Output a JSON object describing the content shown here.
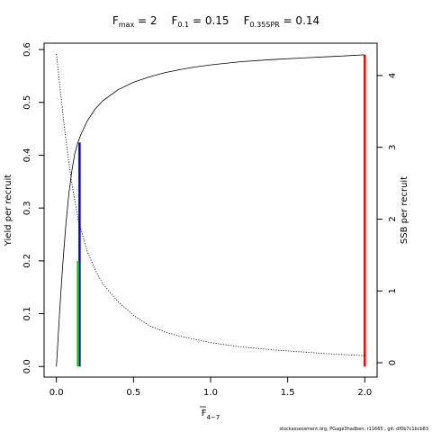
{
  "title": {
    "fmax": {
      "sym": "F",
      "sub": "max",
      "eq": " = 2"
    },
    "f01": {
      "sym": "F",
      "sub": "0.1",
      "eq": " = 0.15"
    },
    "fspr": {
      "sym": "F",
      "sub": "0.35SPR",
      "eq": " = 0.14"
    }
  },
  "footer_text": "stockassessment.org, PGage3hadben, r11665 , git: df0b7c1bcb83",
  "chart_data": {
    "type": "line",
    "xlabel": {
      "sym": "F",
      "sub": "4−7"
    },
    "ylabel_left": "Yield per recruit",
    "ylabel_right": "SSB per recruit",
    "xlim": [
      -0.08,
      2.08
    ],
    "ylim_left": [
      -0.02,
      0.612
    ],
    "ylim_right": [
      -0.2,
      4.45
    ],
    "x_ticks": [
      0,
      0.5,
      1,
      1.5,
      2
    ],
    "x_tick_labels": [
      "0.0",
      "0.5",
      "1.0",
      "1.5",
      "2.0"
    ],
    "y_left_ticks": [
      0,
      0.1,
      0.2,
      0.3,
      0.4,
      0.5,
      0.6
    ],
    "y_left_tick_labels": [
      "0.0",
      "0.1",
      "0.2",
      "0.3",
      "0.4",
      "0.5",
      "0.6"
    ],
    "y_right_ticks": [
      0,
      1,
      2,
      3,
      4
    ],
    "y_right_tick_labels": [
      "0",
      "1",
      "2",
      "3",
      "4"
    ],
    "series": [
      {
        "id": "yield",
        "axis": "left",
        "style": "solid",
        "color": "#000000",
        "x": [
          0,
          0.02,
          0.04,
          0.06,
          0.08,
          0.1,
          0.12,
          0.14,
          0.16,
          0.2,
          0.25,
          0.3,
          0.4,
          0.5,
          0.6,
          0.7,
          0.8,
          0.9,
          1.0,
          1.2,
          1.4,
          1.6,
          1.8,
          2.0
        ],
        "y": [
          0,
          0.1,
          0.19,
          0.265,
          0.325,
          0.37,
          0.405,
          0.425,
          0.44,
          0.465,
          0.487,
          0.503,
          0.524,
          0.538,
          0.548,
          0.556,
          0.562,
          0.567,
          0.571,
          0.577,
          0.581,
          0.584,
          0.587,
          0.59
        ]
      },
      {
        "id": "ssb",
        "axis": "right",
        "style": "dotted",
        "color": "#000000",
        "x": [
          0,
          0.02,
          0.05,
          0.08,
          0.1,
          0.14,
          0.2,
          0.25,
          0.3,
          0.4,
          0.5,
          0.6,
          0.7,
          0.8,
          1.0,
          1.2,
          1.4,
          1.6,
          1.8,
          2.0
        ],
        "y": [
          4.3,
          3.9,
          3.3,
          2.8,
          2.5,
          2.0,
          1.55,
          1.3,
          1.1,
          0.85,
          0.66,
          0.52,
          0.43,
          0.37,
          0.28,
          0.22,
          0.18,
          0.15,
          0.12,
          0.1
        ]
      }
    ],
    "reference_lines": [
      {
        "id": "f01",
        "x": 0.15,
        "y": 0.424,
        "color": "#0000ff"
      },
      {
        "id": "fspr",
        "x": 0.14,
        "y": 0.2,
        "color": "#00cc00"
      },
      {
        "id": "fmax",
        "x": 2.0,
        "y": 0.59,
        "color": "#ff0000"
      }
    ]
  }
}
